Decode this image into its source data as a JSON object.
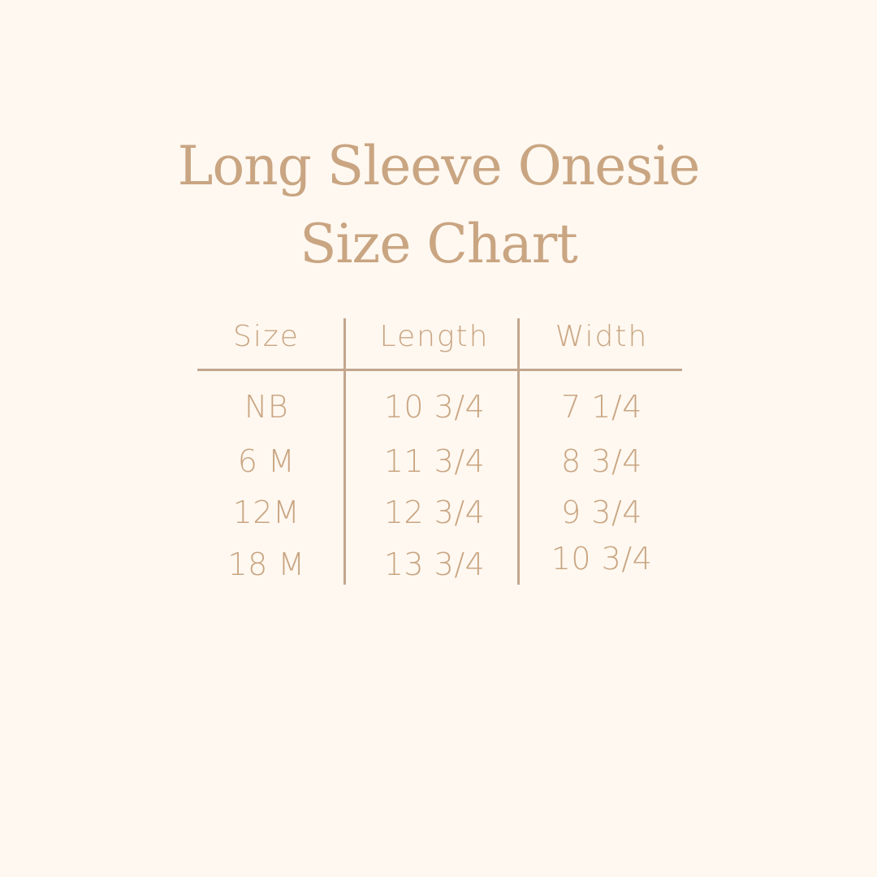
{
  "title": {
    "line1": "Long Sleeve Onesie",
    "line2": "Size Chart"
  },
  "table": {
    "headers": [
      "Size",
      "Length",
      "Width"
    ],
    "rows": [
      [
        "NB",
        "10 3/4",
        "7 1/4"
      ],
      [
        "6 M",
        "11 3/4",
        "8 3/4"
      ],
      [
        "12M",
        "12 3/4",
        "9 3/4"
      ],
      [
        "18 M",
        "13 3/4",
        "10 3/4"
      ]
    ]
  },
  "colors": {
    "background": "#fef8f0",
    "text": "#c9a582",
    "lines": "#c2a68e"
  }
}
